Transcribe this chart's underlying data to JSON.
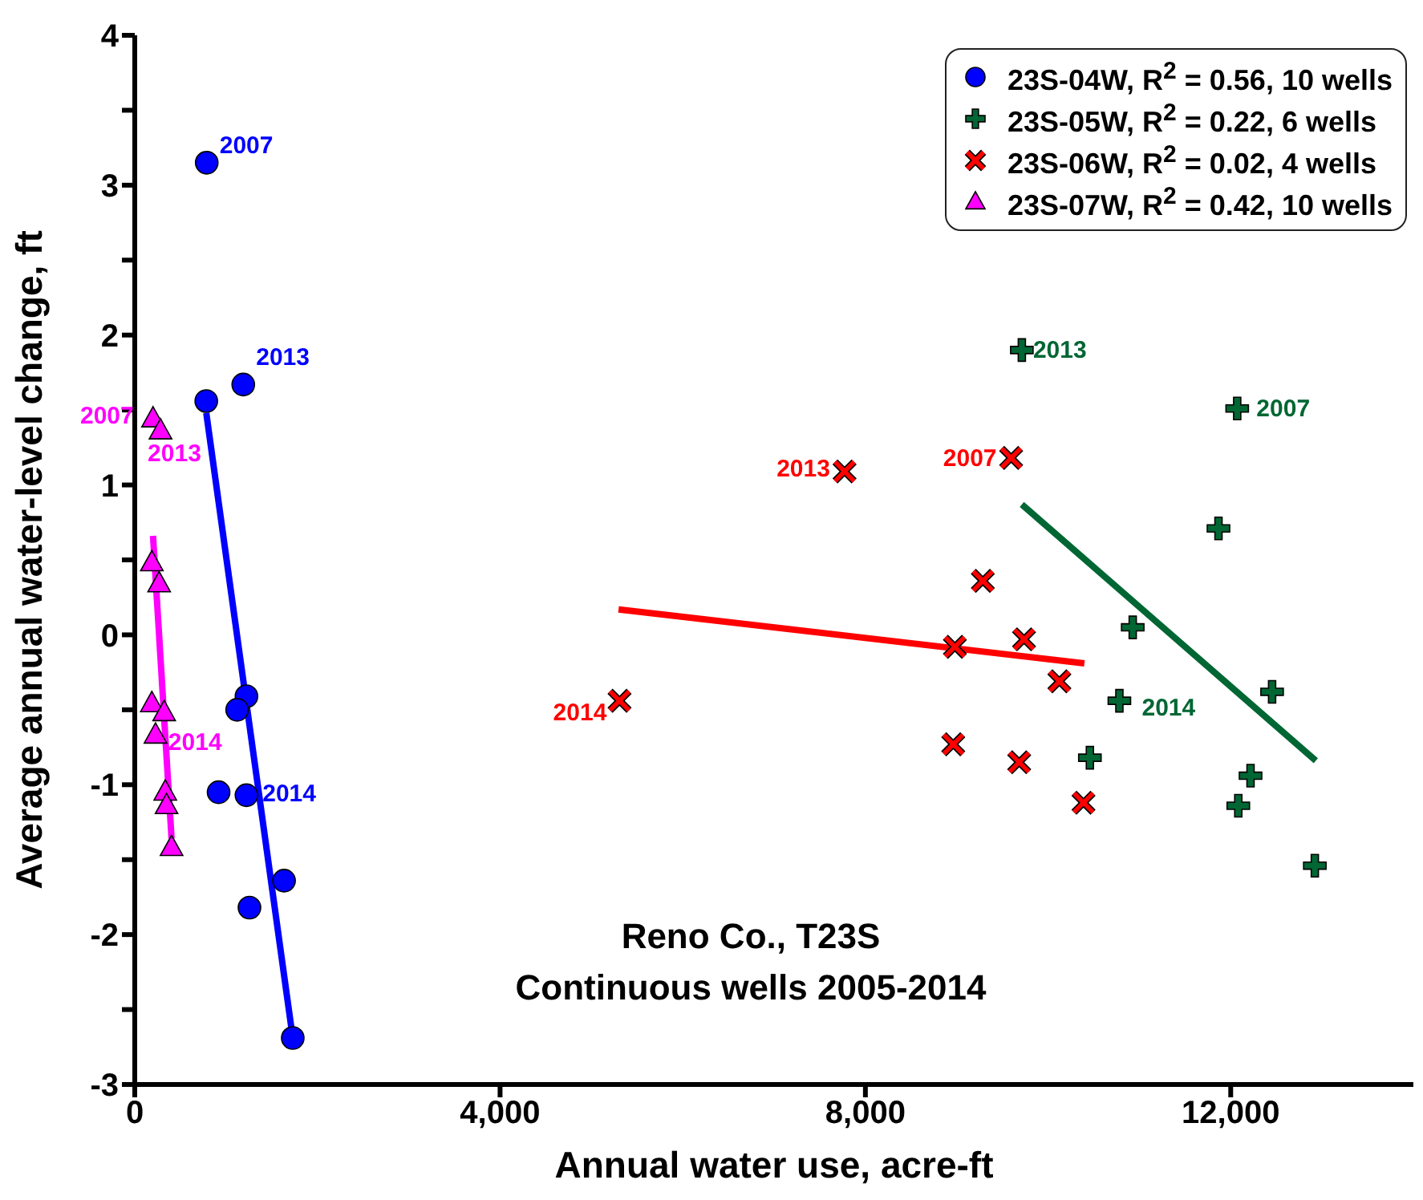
{
  "chart_data": {
    "type": "scatter",
    "xlabel": "Annual water use, acre-ft",
    "ylabel": "Average annual water-level change, ft",
    "xlim": [
      0,
      14000
    ],
    "xticks": [
      0,
      {
        "value": 4000,
        "label": "4,000"
      },
      {
        "value": 8000,
        "label": "8,000"
      },
      {
        "value": 12000,
        "label": "12,000"
      }
    ],
    "ylim": [
      -3,
      4
    ],
    "yticks": [
      -3,
      {
        "value": -2.5,
        "label": null
      },
      -2,
      {
        "value": -1.5,
        "label": null
      },
      -1,
      {
        "value": -0.5,
        "label": null
      },
      0,
      {
        "value": 0.5,
        "label": null
      },
      1,
      {
        "value": 1.5,
        "label": null
      },
      2,
      {
        "value": 2.5,
        "label": null
      },
      3,
      {
        "value": 3.5,
        "label": null
      },
      4
    ],
    "grid": false,
    "legend": "top right",
    "series": [
      {
        "type": "scatter",
        "name": "23S-04W, R$^{2}$ = 0.56, 10 wells",
        "color": "#0000ff",
        "marker": "circle",
        "x": [
          788,
          783,
          1188,
          1223,
          1121,
          918,
          1223,
          1635,
          1256,
          1730
        ],
        "values": [
          3.15,
          1.56,
          1.67,
          -0.41,
          -0.5,
          -1.05,
          -1.07,
          -1.64,
          -1.82,
          -2.69
        ]
      },
      {
        "type": "scatter",
        "name": "23S-05W, R$^{2}$ = 0.22, 6 wells",
        "color": "#006633",
        "marker": "plus",
        "x": [
          9713,
          12071,
          11866,
          10927,
          12453,
          10781,
          10458,
          12217,
          12083,
          12921
        ],
        "values": [
          1.9,
          1.51,
          0.71,
          0.05,
          -0.38,
          -0.44,
          -0.82,
          -0.94,
          -1.14,
          -1.54
        ]
      },
      {
        "type": "scatter",
        "name": "23S-06W, R$^{2}$ = 0.02, 4 wells",
        "color": "#ff0000",
        "marker": "cross",
        "x": [
          7772,
          9596,
          9286,
          8980,
          9737,
          10124,
          5308,
          8962,
          9684,
          10388
        ],
        "values": [
          1.09,
          1.18,
          0.36,
          -0.08,
          -0.03,
          -0.31,
          -0.44,
          -0.73,
          -0.85,
          -1.12
        ]
      },
      {
        "type": "scatter",
        "name": "23S-07W, R$^{2}$ = 0.42, 10 wells",
        "color": "#ff00ff",
        "marker": "triangle",
        "x": [
          200,
          282,
          187,
          267,
          187,
          322,
          227,
          334,
          348,
          403
        ],
        "values": [
          1.44,
          1.36,
          0.48,
          0.34,
          -0.46,
          -0.52,
          -0.67,
          -1.05,
          -1.14,
          -1.42
        ]
      },
      {
        "type": "line",
        "color": "#0000ff",
        "x": [
          783,
          1730
        ],
        "values": [
          1.48,
          -2.69
        ]
      },
      {
        "type": "line",
        "color": "#006633",
        "x": [
          9713,
          12932
        ],
        "values": [
          0.87,
          -0.84
        ]
      },
      {
        "type": "line",
        "color": "#ff0000",
        "x": [
          5297,
          10398
        ],
        "values": [
          0.17,
          -0.19
        ]
      },
      {
        "type": "line",
        "color": "#ff00ff",
        "x": [
          200,
          403
        ],
        "values": [
          0.66,
          -1.36
        ]
      }
    ],
    "annotations": [
      {
        "text": "2007",
        "x": 788,
        "y": 3.15
      },
      {
        "text": "2013",
        "x": 1188,
        "y": 1.67
      },
      {
        "text": "2014",
        "x": 1223,
        "y": -1.07
      },
      {
        "text": "2013",
        "x": 9713,
        "y": 1.9
      },
      {
        "text": "2007",
        "x": 12071,
        "y": 1.51
      },
      {
        "text": "2014",
        "x": 10781,
        "y": -0.44
      },
      {
        "text": "2013",
        "x": 7772,
        "y": 1.09
      },
      {
        "text": "2007",
        "x": 9596,
        "y": 1.18
      },
      {
        "text": "2014",
        "x": 5308,
        "y": -0.44
      },
      {
        "text": "2007",
        "x": 200,
        "y": 1.44
      },
      {
        "text": "2013",
        "x": 282,
        "y": 1.36
      },
      {
        "text": "2014",
        "x": 227,
        "y": -0.67
      },
      "Reno Co., T23S",
      "Continuous wells 2005-2014"
    ]
  }
}
